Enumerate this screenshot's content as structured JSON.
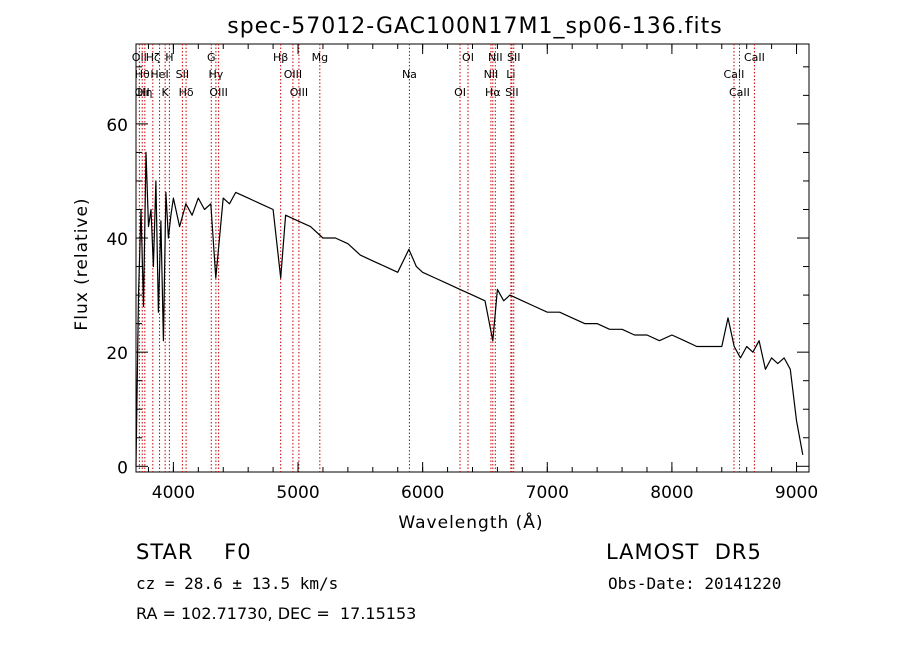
{
  "chart_data": {
    "type": "line",
    "title": "spec-57012-GAC100N17M1_sp06-136.fits",
    "xlabel": "Wavelength (Å)",
    "ylabel": "Flux (relative)",
    "xlim": [
      3700,
      9100
    ],
    "ylim": [
      -1,
      74
    ],
    "xticks": [
      4000,
      5000,
      6000,
      7000,
      8000,
      9000
    ],
    "xtick_labels": [
      "4000",
      "5000",
      "6000",
      "7000",
      "8000",
      "9000"
    ],
    "yticks": [
      0,
      20,
      40,
      60
    ],
    "ytick_labels": [
      "0",
      "20",
      "40",
      "60"
    ],
    "grid": false,
    "line_color": "#000000",
    "marker_color": "#cc0000",
    "series": [
      {
        "x": [
          3700,
          3720,
          3740,
          3760,
          3780,
          3800,
          3820,
          3840,
          3860,
          3880,
          3900,
          3920,
          3940,
          3960,
          3980,
          4000,
          4050,
          4100,
          4150,
          4200,
          4250,
          4300,
          4340,
          4400,
          4450,
          4500,
          4600,
          4700,
          4800,
          4861,
          4900,
          5000,
          5100,
          5200,
          5300,
          5400,
          5500,
          5600,
          5700,
          5800,
          5890,
          5950,
          6000,
          6100,
          6200,
          6300,
          6400,
          6500,
          6563,
          6600,
          6650,
          6700,
          6800,
          6900,
          7000,
          7100,
          7200,
          7300,
          7400,
          7500,
          7600,
          7700,
          7800,
          7900,
          8000,
          8100,
          8200,
          8300,
          8400,
          8450,
          8500,
          8550,
          8600,
          8650,
          8700,
          8750,
          8800,
          8850,
          8900,
          8950,
          9000,
          9050
        ],
        "y": [
          0,
          30,
          45,
          28,
          55,
          42,
          45,
          35,
          50,
          27,
          43,
          22,
          48,
          40,
          44,
          47,
          42,
          46,
          44,
          47,
          45,
          46,
          33,
          47,
          46,
          48,
          47,
          46,
          45,
          33,
          44,
          43,
          42,
          40,
          40,
          39,
          37,
          36,
          35,
          34,
          38,
          35,
          34,
          33,
          32,
          31,
          30,
          29,
          22,
          31,
          29,
          30,
          29,
          28,
          27,
          27,
          26,
          25,
          25,
          24,
          24,
          23,
          23,
          22,
          23,
          22,
          21,
          21,
          21,
          26,
          21,
          19,
          21,
          20,
          22,
          17,
          19,
          18,
          19,
          17,
          8,
          2
        ]
      }
    ],
    "lines": [
      {
        "wl": 3727,
        "labels": [
          "OII"
        ]
      },
      {
        "wl": 3750,
        "labels": [
          "Hθ",
          "OII"
        ]
      },
      {
        "wl": 3771,
        "labels": [
          "Hη"
        ]
      },
      {
        "wl": 3835,
        "labels": [
          "Hζ"
        ]
      },
      {
        "wl": 3889,
        "labels": [
          "HeI"
        ]
      },
      {
        "wl": 3934,
        "labels": [
          "K"
        ]
      },
      {
        "wl": 3968,
        "labels": [
          "H"
        ]
      },
      {
        "wl": 4072,
        "labels": [
          "SII"
        ]
      },
      {
        "wl": 4102,
        "labels": [
          "Hδ"
        ]
      },
      {
        "wl": 4304,
        "labels": [
          "G"
        ]
      },
      {
        "wl": 4341,
        "labels": [
          "Hγ"
        ]
      },
      {
        "wl": 4363,
        "labels": [
          "OIII"
        ]
      },
      {
        "wl": 4861,
        "labels": [
          "Hβ"
        ]
      },
      {
        "wl": 4959,
        "labels": [
          "OIII"
        ]
      },
      {
        "wl": 5007,
        "labels": [
          "OIII"
        ]
      },
      {
        "wl": 5175,
        "labels": [
          "Mg"
        ]
      },
      {
        "wl": 5894,
        "labels": [
          "Na"
        ]
      },
      {
        "wl": 6300,
        "labels": [
          "OI"
        ]
      },
      {
        "wl": 6364,
        "labels": [
          "OI"
        ]
      },
      {
        "wl": 6548,
        "labels": [
          "NII"
        ]
      },
      {
        "wl": 6563,
        "labels": [
          "Hα"
        ]
      },
      {
        "wl": 6583,
        "labels": [
          "NII"
        ]
      },
      {
        "wl": 6708,
        "labels": [
          "Li"
        ]
      },
      {
        "wl": 6716,
        "labels": [
          "SII"
        ]
      },
      {
        "wl": 6731,
        "labels": [
          "SII"
        ]
      },
      {
        "wl": 8498,
        "labels": [
          "CaII"
        ]
      },
      {
        "wl": 8542,
        "labels": [
          "CaII"
        ]
      },
      {
        "wl": 8662,
        "labels": [
          "CaII"
        ]
      }
    ]
  },
  "info": {
    "spec_type": "STAR    F0",
    "survey": "LAMOST  DR5",
    "cz": "cz = 28.6 ± 13.5 km/s",
    "obs_date": "Obs-Date: 20141220",
    "radec": "RA = 102.71730, DEC =  17.15153"
  }
}
